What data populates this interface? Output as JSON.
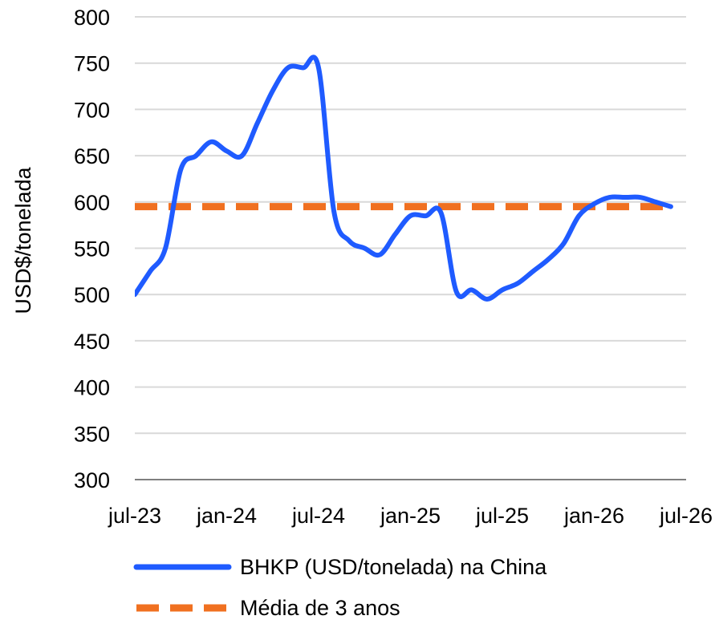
{
  "chart_data": {
    "type": "line",
    "title": "",
    "xlabel": "",
    "ylabel": "USD$/tonelada",
    "ylim": [
      300,
      800
    ],
    "yticks": [
      300,
      350,
      400,
      450,
      500,
      550,
      600,
      650,
      700,
      750,
      800
    ],
    "xlim": [
      "2023-07",
      "2026-07"
    ],
    "xticks": [
      "jul-23",
      "jan-24",
      "jul-24",
      "jan-25",
      "jul-25",
      "jan-26",
      "jul-26"
    ],
    "grid": "horizontal",
    "legend_position": "bottom",
    "series": [
      {
        "name": "BHKP (USD/tonelada) na China",
        "color": "#1f5bff",
        "style": "solid",
        "x": [
          "2023-07",
          "2023-08",
          "2023-09",
          "2023-10",
          "2023-11",
          "2023-12",
          "2024-01",
          "2024-02",
          "2024-03",
          "2024-04",
          "2024-05",
          "2024-06",
          "2024-07",
          "2024-08",
          "2024-09",
          "2024-10",
          "2024-11",
          "2024-12",
          "2025-01",
          "2025-02",
          "2025-03",
          "2025-04",
          "2025-05",
          "2025-06",
          "2025-07",
          "2025-08",
          "2025-09",
          "2025-10",
          "2025-11",
          "2025-12",
          "2026-01",
          "2026-02",
          "2026-03",
          "2026-04",
          "2026-05",
          "2026-06"
        ],
        "values": [
          500,
          525,
          550,
          635,
          650,
          665,
          655,
          650,
          685,
          720,
          745,
          745,
          745,
          590,
          558,
          550,
          543,
          565,
          585,
          585,
          588,
          503,
          505,
          495,
          505,
          512,
          525,
          538,
          555,
          585,
          598,
          605,
          605,
          605,
          600,
          595
        ]
      },
      {
        "name": "Média de 3 anos",
        "color": "#f07020",
        "style": "dashed",
        "x": [
          "2023-07",
          "2026-06"
        ],
        "values": [
          595,
          595
        ]
      }
    ]
  }
}
